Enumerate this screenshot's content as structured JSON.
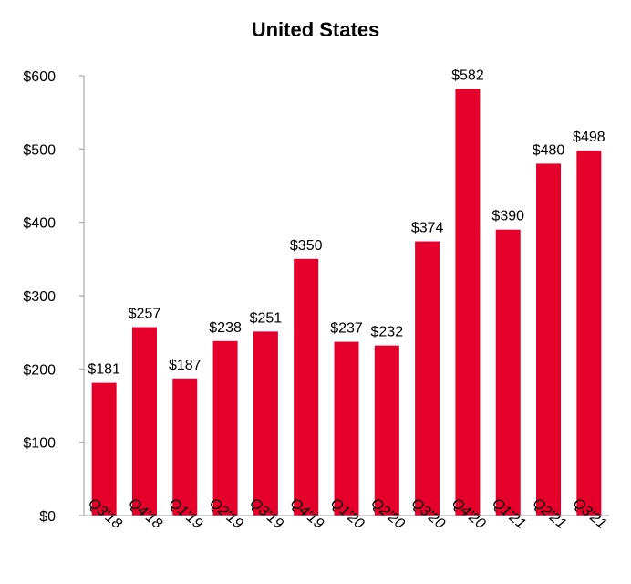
{
  "chart_data": {
    "type": "bar",
    "title": "United States",
    "xlabel": "",
    "ylabel": "",
    "categories": [
      "Q3'18",
      "Q4'18",
      "Q1'19",
      "Q2'19",
      "Q3'19",
      "Q4'19",
      "Q1'20",
      "Q2'20",
      "Q3'20",
      "Q4'20",
      "Q1'21",
      "Q2'21",
      "Q3'21"
    ],
    "values": [
      181,
      257,
      187,
      238,
      251,
      350,
      237,
      232,
      374,
      582,
      390,
      480,
      498
    ],
    "data_labels": [
      "$181",
      "$257",
      "$187",
      "$238",
      "$251",
      "$350",
      "$237",
      "$232",
      "$374",
      "$582",
      "$390",
      "$480",
      "$498"
    ],
    "ylim": [
      0,
      600
    ],
    "yticks": [
      0,
      100,
      200,
      300,
      400,
      500,
      600
    ],
    "ytick_labels": [
      "$0",
      "$100",
      "$200",
      "$300",
      "$400",
      "$500",
      "$600"
    ],
    "bar_color": "#E4002B",
    "axis_color": "#999999",
    "grid": false,
    "legend": "none"
  }
}
